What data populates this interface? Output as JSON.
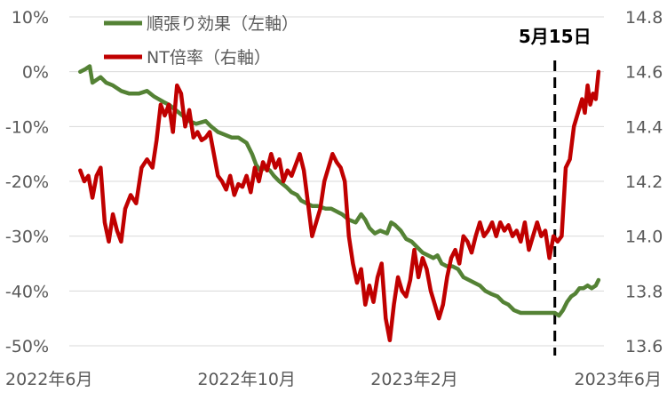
{
  "chart_data": {
    "type": "line",
    "legend": {
      "placement": "top-left",
      "entries": [
        {
          "label": "順張り効果（左軸）",
          "color": "#548235",
          "axis": "left"
        },
        {
          "label": "NT倍率（右軸）",
          "color": "#C00000",
          "axis": "right"
        }
      ]
    },
    "x_axis": {
      "range": [
        "2022-05-24",
        "2023-06-20"
      ],
      "ticks": [
        {
          "date": "2022-06-01",
          "label": "2022年6月"
        },
        {
          "date": "2022-10-01",
          "label": "2022年10月"
        },
        {
          "date": "2023-02-01",
          "label": "2023年2月"
        },
        {
          "date": "2023-06-01",
          "label": "2023年6月"
        }
      ]
    },
    "y_left": {
      "range": [
        -50,
        10
      ],
      "unit": "%",
      "ticks": [
        {
          "value": 10,
          "label": "10%"
        },
        {
          "value": 0,
          "label": "0%"
        },
        {
          "value": -10,
          "label": "-10%"
        },
        {
          "value": -20,
          "label": "-20%"
        },
        {
          "value": -30,
          "label": "-30%"
        },
        {
          "value": -40,
          "label": "-40%"
        },
        {
          "value": -50,
          "label": "-50%"
        }
      ]
    },
    "y_right": {
      "range": [
        13.6,
        14.8
      ],
      "ticks": [
        {
          "value": 14.8,
          "label": "14.8"
        },
        {
          "value": 14.6,
          "label": "14.6"
        },
        {
          "value": 14.4,
          "label": "14.4"
        },
        {
          "value": 14.2,
          "label": "14.2"
        },
        {
          "value": 14.0,
          "label": "14.0"
        },
        {
          "value": 13.8,
          "label": "13.8"
        },
        {
          "value": 13.6,
          "label": "13.6"
        }
      ]
    },
    "annotation": {
      "label": "5月15日",
      "date": "2023-05-15",
      "style": "dashed-vertical-line"
    },
    "gridlines": {
      "horizontal": true,
      "vertical": false
    },
    "series": [
      {
        "name": "順張り効果（左軸）",
        "axis": "left",
        "color": "#548235",
        "points": [
          [
            "2022-06-01",
            0.0
          ],
          [
            "2022-06-05",
            0.5
          ],
          [
            "2022-06-08",
            1.0
          ],
          [
            "2022-06-10",
            -2.0
          ],
          [
            "2022-06-13",
            -1.5
          ],
          [
            "2022-06-16",
            -1.0
          ],
          [
            "2022-06-20",
            -2.0
          ],
          [
            "2022-06-25",
            -2.5
          ],
          [
            "2022-07-01",
            -3.5
          ],
          [
            "2022-07-07",
            -4.0
          ],
          [
            "2022-07-14",
            -4.0
          ],
          [
            "2022-07-20",
            -3.5
          ],
          [
            "2022-07-25",
            -4.5
          ],
          [
            "2022-08-01",
            -5.5
          ],
          [
            "2022-08-05",
            -6.0
          ],
          [
            "2022-08-10",
            -7.0
          ],
          [
            "2022-08-15",
            -8.0
          ],
          [
            "2022-08-20",
            -9.0
          ],
          [
            "2022-08-25",
            -9.5
          ],
          [
            "2022-09-01",
            -9.0
          ],
          [
            "2022-09-05",
            -10.0
          ],
          [
            "2022-09-10",
            -11.0
          ],
          [
            "2022-09-15",
            -11.5
          ],
          [
            "2022-09-20",
            -12.0
          ],
          [
            "2022-09-25",
            -12.0
          ],
          [
            "2022-09-28",
            -12.5
          ],
          [
            "2022-10-01",
            -13.0
          ],
          [
            "2022-10-05",
            -15.0
          ],
          [
            "2022-10-08",
            -17.0
          ],
          [
            "2022-10-11",
            -18.0
          ],
          [
            "2022-10-15",
            -17.5
          ],
          [
            "2022-10-18",
            -18.0
          ],
          [
            "2022-10-21",
            -19.0
          ],
          [
            "2022-10-25",
            -20.0
          ],
          [
            "2022-10-30",
            -21.0
          ],
          [
            "2022-11-03",
            -22.0
          ],
          [
            "2022-11-07",
            -22.5
          ],
          [
            "2022-11-10",
            -23.5
          ],
          [
            "2022-11-14",
            -24.0
          ],
          [
            "2022-11-18",
            -24.5
          ],
          [
            "2022-11-22",
            -24.5
          ],
          [
            "2022-11-28",
            -25.0
          ],
          [
            "2022-12-02",
            -25.0
          ],
          [
            "2022-12-06",
            -25.5
          ],
          [
            "2022-12-10",
            -26.0
          ],
          [
            "2022-12-15",
            -27.0
          ],
          [
            "2022-12-20",
            -27.5
          ],
          [
            "2022-12-24",
            -26.0
          ],
          [
            "2022-12-27",
            -27.0
          ],
          [
            "2022-12-30",
            -28.5
          ],
          [
            "2023-01-03",
            -29.5
          ],
          [
            "2023-01-07",
            -29.0
          ],
          [
            "2023-01-12",
            -29.5
          ],
          [
            "2023-01-15",
            -27.5
          ],
          [
            "2023-01-18",
            -28.0
          ],
          [
            "2023-01-22",
            -29.0
          ],
          [
            "2023-01-26",
            -30.5
          ],
          [
            "2023-01-30",
            -31.0
          ],
          [
            "2023-02-03",
            -32.0
          ],
          [
            "2023-02-07",
            -33.0
          ],
          [
            "2023-02-11",
            -33.5
          ],
          [
            "2023-02-15",
            -34.0
          ],
          [
            "2023-02-18",
            -33.5
          ],
          [
            "2023-02-21",
            -35.0
          ],
          [
            "2023-02-25",
            -35.5
          ],
          [
            "2023-03-01",
            -35.5
          ],
          [
            "2023-03-05",
            -36.0
          ],
          [
            "2023-03-09",
            -37.5
          ],
          [
            "2023-03-13",
            -38.0
          ],
          [
            "2023-03-17",
            -38.5
          ],
          [
            "2023-03-21",
            -39.0
          ],
          [
            "2023-03-25",
            -40.0
          ],
          [
            "2023-03-29",
            -40.5
          ],
          [
            "2023-04-03",
            -41.0
          ],
          [
            "2023-04-07",
            -42.0
          ],
          [
            "2023-04-11",
            -42.5
          ],
          [
            "2023-04-15",
            -43.5
          ],
          [
            "2023-04-20",
            -44.0
          ],
          [
            "2023-04-25",
            -44.0
          ],
          [
            "2023-05-01",
            -44.0
          ],
          [
            "2023-05-05",
            -44.0
          ],
          [
            "2023-05-10",
            -44.0
          ],
          [
            "2023-05-15",
            -44.0
          ],
          [
            "2023-05-18",
            -44.5
          ],
          [
            "2023-05-21",
            -43.5
          ],
          [
            "2023-05-24",
            -42.0
          ],
          [
            "2023-05-27",
            -41.0
          ],
          [
            "2023-05-30",
            -40.5
          ],
          [
            "2023-06-02",
            -39.5
          ],
          [
            "2023-06-05",
            -39.5
          ],
          [
            "2023-06-08",
            -39.0
          ],
          [
            "2023-06-11",
            -39.5
          ],
          [
            "2023-06-14",
            -39.0
          ],
          [
            "2023-06-16",
            -38.0
          ]
        ]
      },
      {
        "name": "NT倍率（右軸）",
        "axis": "right",
        "color": "#C00000",
        "points": [
          [
            "2022-06-01",
            14.24
          ],
          [
            "2022-06-04",
            14.2
          ],
          [
            "2022-06-07",
            14.22
          ],
          [
            "2022-06-10",
            14.14
          ],
          [
            "2022-06-13",
            14.22
          ],
          [
            "2022-06-16",
            14.25
          ],
          [
            "2022-06-19",
            14.05
          ],
          [
            "2022-06-22",
            13.98
          ],
          [
            "2022-06-25",
            14.08
          ],
          [
            "2022-06-28",
            14.02
          ],
          [
            "2022-07-01",
            13.98
          ],
          [
            "2022-07-04",
            14.1
          ],
          [
            "2022-07-08",
            14.15
          ],
          [
            "2022-07-12",
            14.12
          ],
          [
            "2022-07-16",
            14.25
          ],
          [
            "2022-07-20",
            14.28
          ],
          [
            "2022-07-24",
            14.25
          ],
          [
            "2022-07-27",
            14.35
          ],
          [
            "2022-07-30",
            14.48
          ],
          [
            "2022-08-02",
            14.44
          ],
          [
            "2022-08-05",
            14.48
          ],
          [
            "2022-08-08",
            14.38
          ],
          [
            "2022-08-11",
            14.55
          ],
          [
            "2022-08-14",
            14.52
          ],
          [
            "2022-08-17",
            14.4
          ],
          [
            "2022-08-20",
            14.46
          ],
          [
            "2022-08-23",
            14.36
          ],
          [
            "2022-08-26",
            14.38
          ],
          [
            "2022-08-29",
            14.35
          ],
          [
            "2022-09-01",
            14.36
          ],
          [
            "2022-09-04",
            14.38
          ],
          [
            "2022-09-07",
            14.3
          ],
          [
            "2022-09-10",
            14.22
          ],
          [
            "2022-09-13",
            14.2
          ],
          [
            "2022-09-16",
            14.17
          ],
          [
            "2022-09-19",
            14.22
          ],
          [
            "2022-09-22",
            14.15
          ],
          [
            "2022-09-25",
            14.19
          ],
          [
            "2022-09-28",
            14.18
          ],
          [
            "2022-10-01",
            14.22
          ],
          [
            "2022-10-04",
            14.16
          ],
          [
            "2022-10-07",
            14.25
          ],
          [
            "2022-10-10",
            14.2
          ],
          [
            "2022-10-13",
            14.27
          ],
          [
            "2022-10-16",
            14.24
          ],
          [
            "2022-10-19",
            14.3
          ],
          [
            "2022-10-22",
            14.25
          ],
          [
            "2022-10-25",
            14.28
          ],
          [
            "2022-10-28",
            14.2
          ],
          [
            "2022-10-31",
            14.24
          ],
          [
            "2022-11-03",
            14.22
          ],
          [
            "2022-11-06",
            14.26
          ],
          [
            "2022-11-09",
            14.3
          ],
          [
            "2022-11-12",
            14.24
          ],
          [
            "2022-11-15",
            14.12
          ],
          [
            "2022-11-18",
            14.0
          ],
          [
            "2022-11-21",
            14.05
          ],
          [
            "2022-11-24",
            14.1
          ],
          [
            "2022-11-27",
            14.2
          ],
          [
            "2022-11-30",
            14.25
          ],
          [
            "2022-12-03",
            14.3
          ],
          [
            "2022-12-06",
            14.27
          ],
          [
            "2022-12-09",
            14.25
          ],
          [
            "2022-12-12",
            14.2
          ],
          [
            "2022-12-15",
            14.0
          ],
          [
            "2022-12-18",
            13.9
          ],
          [
            "2022-12-21",
            13.83
          ],
          [
            "2022-12-24",
            13.88
          ],
          [
            "2022-12-27",
            13.75
          ],
          [
            "2022-12-30",
            13.82
          ],
          [
            "2023-01-02",
            13.76
          ],
          [
            "2023-01-05",
            13.85
          ],
          [
            "2023-01-08",
            13.9
          ],
          [
            "2023-01-11",
            13.7
          ],
          [
            "2023-01-14",
            13.62
          ],
          [
            "2023-01-17",
            13.75
          ],
          [
            "2023-01-20",
            13.85
          ],
          [
            "2023-01-23",
            13.8
          ],
          [
            "2023-01-26",
            13.78
          ],
          [
            "2023-01-29",
            13.84
          ],
          [
            "2023-02-01",
            13.95
          ],
          [
            "2023-02-04",
            13.85
          ],
          [
            "2023-02-07",
            13.92
          ],
          [
            "2023-02-10",
            13.88
          ],
          [
            "2023-02-13",
            13.8
          ],
          [
            "2023-02-16",
            13.75
          ],
          [
            "2023-02-19",
            13.7
          ],
          [
            "2023-02-22",
            13.75
          ],
          [
            "2023-02-25",
            13.85
          ],
          [
            "2023-02-28",
            13.92
          ],
          [
            "2023-03-03",
            13.95
          ],
          [
            "2023-03-06",
            13.9
          ],
          [
            "2023-03-09",
            14.0
          ],
          [
            "2023-03-12",
            13.98
          ],
          [
            "2023-03-15",
            13.94
          ],
          [
            "2023-03-18",
            14.0
          ],
          [
            "2023-03-21",
            14.05
          ],
          [
            "2023-03-24",
            14.0
          ],
          [
            "2023-03-27",
            14.02
          ],
          [
            "2023-03-30",
            14.05
          ],
          [
            "2023-04-02",
            14.0
          ],
          [
            "2023-04-05",
            14.05
          ],
          [
            "2023-04-08",
            14.02
          ],
          [
            "2023-04-11",
            14.04
          ],
          [
            "2023-04-14",
            14.0
          ],
          [
            "2023-04-17",
            14.02
          ],
          [
            "2023-04-20",
            13.98
          ],
          [
            "2023-04-23",
            14.05
          ],
          [
            "2023-04-26",
            13.95
          ],
          [
            "2023-04-29",
            14.0
          ],
          [
            "2023-05-02",
            14.05
          ],
          [
            "2023-05-05",
            14.0
          ],
          [
            "2023-05-08",
            14.02
          ],
          [
            "2023-05-11",
            13.92
          ],
          [
            "2023-05-14",
            14.0
          ],
          [
            "2023-05-17",
            13.98
          ],
          [
            "2023-05-20",
            14.0
          ],
          [
            "2023-05-23",
            14.25
          ],
          [
            "2023-05-26",
            14.28
          ],
          [
            "2023-05-29",
            14.4
          ],
          [
            "2023-06-01",
            14.45
          ],
          [
            "2023-06-04",
            14.5
          ],
          [
            "2023-06-06",
            14.45
          ],
          [
            "2023-06-08",
            14.55
          ],
          [
            "2023-06-10",
            14.48
          ],
          [
            "2023-06-12",
            14.52
          ],
          [
            "2023-06-14",
            14.5
          ],
          [
            "2023-06-16",
            14.6
          ]
        ]
      }
    ]
  }
}
